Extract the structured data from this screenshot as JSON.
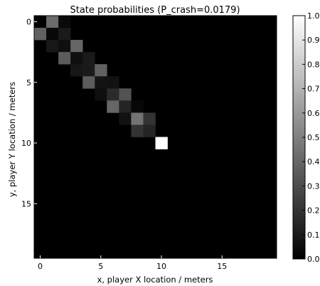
{
  "chart_data": {
    "type": "heatmap",
    "title": "State probabilities (P_crash=0.0179)",
    "xlabel": "x, player X location / meters",
    "ylabel": "y, player Y location / meters",
    "x_range": [
      0,
      19
    ],
    "y_range": [
      0,
      19
    ],
    "y_inverted": true,
    "x_ticks": [
      0,
      5,
      10,
      15
    ],
    "y_ticks": [
      0,
      5,
      10,
      15
    ],
    "colormap": "gray",
    "colorbar": {
      "range": [
        0.0,
        1.0
      ],
      "ticks": [
        "0.0",
        "0.1",
        "0.2",
        "0.3",
        "0.4",
        "0.5",
        "0.6",
        "0.7",
        "0.8",
        "0.9",
        "1.0"
      ]
    },
    "cells": [
      {
        "x": 1,
        "y": 0,
        "value": 0.42
      },
      {
        "x": 2,
        "y": 0,
        "value": 0.04
      },
      {
        "x": 0,
        "y": 1,
        "value": 0.38
      },
      {
        "x": 1,
        "y": 1,
        "value": 0.03
      },
      {
        "x": 2,
        "y": 1,
        "value": 0.1
      },
      {
        "x": 1,
        "y": 2,
        "value": 0.09
      },
      {
        "x": 2,
        "y": 2,
        "value": 0.06
      },
      {
        "x": 3,
        "y": 2,
        "value": 0.4
      },
      {
        "x": 2,
        "y": 3,
        "value": 0.36
      },
      {
        "x": 3,
        "y": 3,
        "value": 0.06
      },
      {
        "x": 4,
        "y": 3,
        "value": 0.1
      },
      {
        "x": 3,
        "y": 4,
        "value": 0.09
      },
      {
        "x": 4,
        "y": 4,
        "value": 0.1
      },
      {
        "x": 5,
        "y": 4,
        "value": 0.38
      },
      {
        "x": 4,
        "y": 5,
        "value": 0.36
      },
      {
        "x": 5,
        "y": 5,
        "value": 0.08
      },
      {
        "x": 6,
        "y": 5,
        "value": 0.07
      },
      {
        "x": 5,
        "y": 6,
        "value": 0.06
      },
      {
        "x": 6,
        "y": 6,
        "value": 0.17
      },
      {
        "x": 7,
        "y": 6,
        "value": 0.32
      },
      {
        "x": 6,
        "y": 7,
        "value": 0.4
      },
      {
        "x": 7,
        "y": 7,
        "value": 0.14
      },
      {
        "x": 8,
        "y": 7,
        "value": 0.03
      },
      {
        "x": 7,
        "y": 8,
        "value": 0.07
      },
      {
        "x": 8,
        "y": 8,
        "value": 0.45
      },
      {
        "x": 9,
        "y": 8,
        "value": 0.2
      },
      {
        "x": 8,
        "y": 9,
        "value": 0.2
      },
      {
        "x": 9,
        "y": 9,
        "value": 0.14
      },
      {
        "x": 10,
        "y": 10,
        "value": 1.0
      }
    ]
  }
}
